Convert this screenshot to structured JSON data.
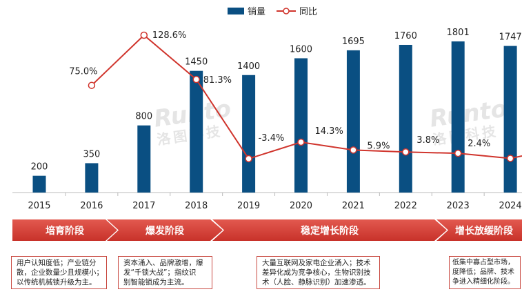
{
  "chart_data": {
    "type": "bar+line",
    "categories": [
      "2015",
      "2016",
      "2017",
      "2018",
      "2019",
      "2020",
      "2021",
      "2022",
      "2023",
      "2024"
    ],
    "series": [
      {
        "name": "销量",
        "type": "bar",
        "color": "#0a4f82",
        "values": [
          200,
          350,
          800,
          1450,
          1400,
          1600,
          1695,
          1760,
          1801,
          1747
        ]
      },
      {
        "name": "同比",
        "type": "line",
        "color": "#d0342c",
        "values": [
          null,
          75.0,
          128.6,
          81.3,
          -3.4,
          14.3,
          5.9,
          3.8,
          2.4,
          -3.0
        ],
        "labels": [
          "",
          "75.0%",
          "128.6%",
          "81.3%",
          "-3.4%",
          "14.3%",
          "5.9%",
          "3.8%",
          "2.4%",
          ""
        ]
      }
    ],
    "grid": false,
    "legend": "top"
  },
  "watermark": {
    "brand": "Runto",
    "cn": "洛图科技"
  },
  "stages": [
    {
      "label": "培育阶段",
      "desc": [
        "用户认知度低；产业链分",
        "散，企业数量少且规模小；",
        "以传统机械锁升级为主。"
      ]
    },
    {
      "label": "爆发阶段",
      "desc": [
        "资本涌入、品牌激增，爆",
        "发“千锁大战”；指纹识",
        "别智能锁成为主流。"
      ]
    },
    {
      "label": "稳定增长阶段",
      "desc": [
        "大量互联网及家电企业涌入；技术",
        "差异化成为竞争核心，生物识别技",
        "术（人脸、静脉识别）加速渗透。"
      ]
    },
    {
      "label": "增长放缓阶段",
      "desc": [
        "低集中寡占型市场，",
        "度降低；品牌、技术",
        "争进入精细化阶段。"
      ]
    }
  ]
}
